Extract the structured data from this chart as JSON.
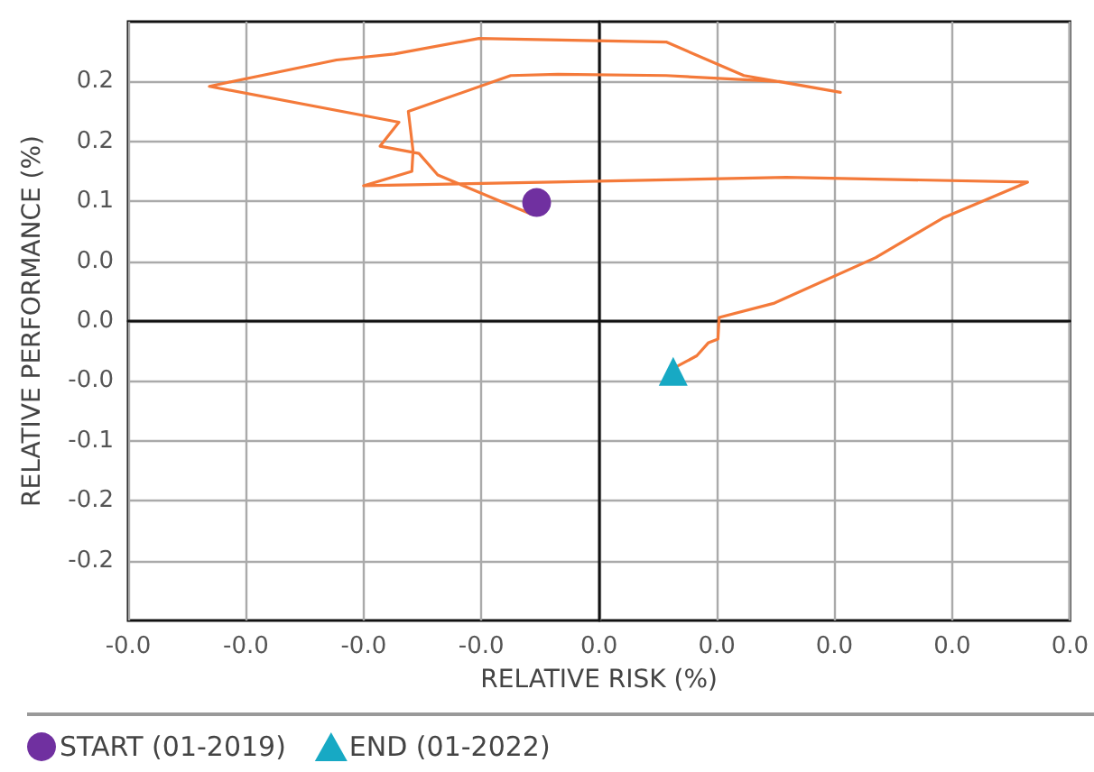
{
  "chart_data": {
    "type": "line",
    "xlabel": "RELATIVE RISK (%)",
    "ylabel": "RELATIVE PERFORMANCE (%)",
    "xlim": [
      -0.04,
      0.04
    ],
    "xticks": [
      {
        "value": -0.04,
        "label": "-0.0"
      },
      {
        "value": -0.03,
        "label": "-0.0"
      },
      {
        "value": -0.02,
        "label": "-0.0"
      },
      {
        "value": -0.01,
        "label": "-0.0"
      },
      {
        "value": 0,
        "label": "0.0"
      },
      {
        "value": 0.01,
        "label": "0.0"
      },
      {
        "value": 0.02,
        "label": "0.0"
      },
      {
        "value": 0.03,
        "label": "0.0"
      },
      {
        "value": 0.04,
        "label": "0.0"
      }
    ],
    "ylim": [
      -0.25,
      0.25
    ],
    "yticks": [
      {
        "value": -0.2,
        "label": "-0.2"
      },
      {
        "value": -0.15,
        "label": "-0.2"
      },
      {
        "value": -0.1,
        "label": "-0.1"
      },
      {
        "value": -0.05,
        "label": "-0.0"
      },
      {
        "value": 0,
        "label": "0.0"
      },
      {
        "value": 0.05,
        "label": "0.0"
      },
      {
        "value": 0.1,
        "label": "0.1"
      },
      {
        "value": 0.15,
        "label": "0.2"
      },
      {
        "value": 0.2,
        "label": "0.2"
      }
    ],
    "grid": true,
    "legend": "bottom left",
    "series": [
      {
        "color": "#f47a3a",
        "marker": "none",
        "x": [
          -0.0057,
          -0.0137,
          -0.0153,
          -0.0186,
          -0.017,
          -0.0331,
          -0.0223,
          -0.0174,
          -0.0102,
          0.0057,
          0.0123,
          0.0205,
          0.0153,
          0.0057,
          -0.0035,
          -0.0075,
          -0.0162,
          -0.0158,
          -0.0159,
          -0.02,
          -0.0039,
          0.0159,
          0.0364,
          0.0292,
          0.0235,
          0.0149,
          0.0102,
          0.0101,
          0.0093,
          0.0083,
          0.0066
        ],
        "values": [
          0.089,
          0.122,
          0.14,
          0.146,
          0.166,
          0.196,
          0.218,
          0.223,
          0.236,
          0.233,
          0.205,
          0.191,
          0.2,
          0.205,
          0.206,
          0.205,
          0.175,
          0.142,
          0.125,
          0.113,
          0.116,
          0.12,
          0.116,
          0.086,
          0.053,
          0.015,
          0.003,
          -0.015,
          -0.018,
          -0.029,
          -0.038
        ]
      },
      {
        "type": "scatter",
        "name": "START (01-2019)",
        "color": "#7030a0",
        "marker": "circle",
        "x": [
          -0.0053
        ],
        "values": [
          0.099
        ]
      },
      {
        "type": "scatter",
        "name": "END (01-2022)",
        "color": "#17a9c4",
        "marker": "triangle",
        "x": [
          0.0063
        ],
        "values": [
          -0.042
        ]
      }
    ]
  }
}
